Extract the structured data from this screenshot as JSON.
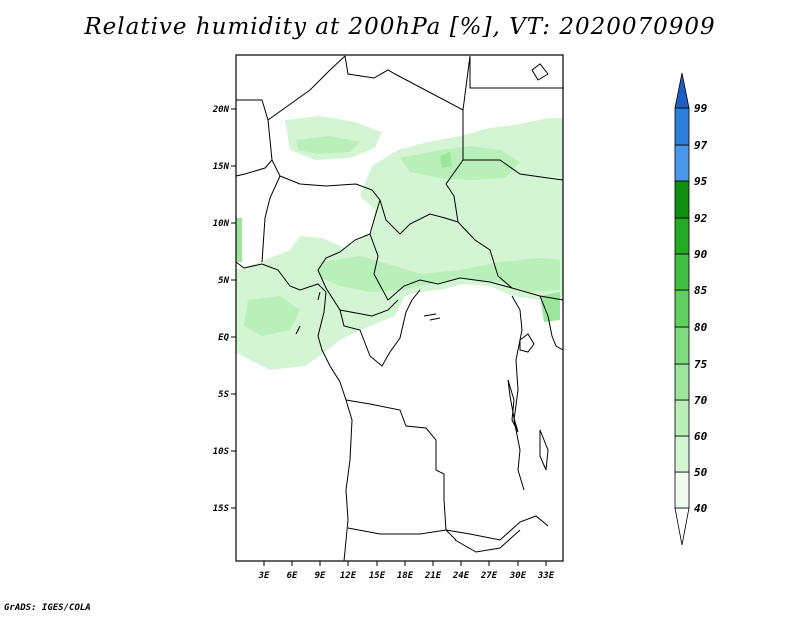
{
  "title": "Relative humidity at 200hPa [%], VT: 2020070909",
  "credit": "GrADS: IGES/COLA",
  "map": {
    "lat_labels": [
      "20N",
      "15N",
      "10N",
      "5N",
      "EQ",
      "5S",
      "10S",
      "15S"
    ],
    "lon_labels": [
      "3E",
      "6E",
      "9E",
      "12E",
      "15E",
      "18E",
      "21E",
      "24E",
      "27E",
      "30E",
      "33E"
    ],
    "colors": {
      "c40": "#eefbee",
      "c50": "#d4f5d4",
      "c60": "#b9efb9",
      "c70": "#9be69b",
      "c75": "#7edb7e",
      "c80": "#5fcf5f",
      "c85": "#40c040",
      "c90": "#22aa22",
      "c92": "#0e900e",
      "c95": "#4a98ea",
      "c97": "#2e7fdc",
      "c99": "#1d5fc4"
    }
  },
  "colorbar": {
    "labels": [
      "40",
      "50",
      "60",
      "70",
      "75",
      "80",
      "85",
      "90",
      "92",
      "95",
      "97",
      "99"
    ]
  }
}
